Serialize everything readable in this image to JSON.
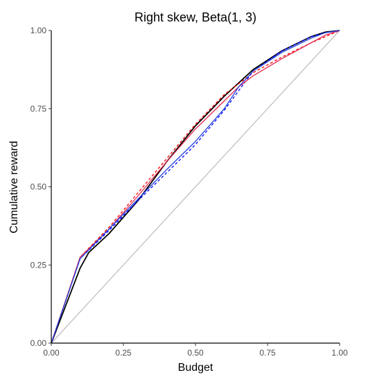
{
  "chart_data": {
    "type": "line",
    "title": "Right skew, Beta(1, 3)",
    "xlabel": "Budget",
    "ylabel": "Cumulative reward",
    "xlim": [
      0,
      1
    ],
    "ylim": [
      0,
      1
    ],
    "x_ticks": [
      "0.00",
      "0.25",
      "0.50",
      "0.75",
      "1.00"
    ],
    "y_ticks": [
      "0.00",
      "0.25",
      "0.50",
      "0.75",
      "1.00"
    ],
    "grid": false,
    "legend": "none",
    "series": [
      {
        "color": "#c0c0c0",
        "dash": "solid",
        "x": [
          0,
          1
        ],
        "y": [
          0,
          1
        ]
      },
      {
        "color": "#000000",
        "dash": "solid",
        "x": [
          0,
          0.05,
          0.1,
          0.13,
          0.2,
          0.3,
          0.4,
          0.5,
          0.6,
          0.7,
          0.8,
          0.9,
          0.95,
          1.0
        ],
        "y": [
          0,
          0.12,
          0.24,
          0.29,
          0.35,
          0.455,
          0.58,
          0.695,
          0.79,
          0.875,
          0.935,
          0.98,
          0.995,
          1.0
        ]
      },
      {
        "color": "#ff0000",
        "dash": "dashed",
        "x": [
          0,
          0.1,
          0.2,
          0.3,
          0.4,
          0.5,
          0.6,
          0.7,
          0.8,
          0.9,
          1.0
        ],
        "y": [
          0,
          0.275,
          0.37,
          0.48,
          0.59,
          0.7,
          0.795,
          0.865,
          0.915,
          0.96,
          1.0
        ]
      },
      {
        "color": "#0000ff",
        "dash": "dashed",
        "x": [
          0,
          0.1,
          0.2,
          0.3,
          0.4,
          0.5,
          0.6,
          0.7,
          0.8,
          0.9,
          0.95,
          1.0
        ],
        "y": [
          0,
          0.27,
          0.36,
          0.455,
          0.545,
          0.635,
          0.745,
          0.87,
          0.935,
          0.98,
          0.993,
          1.0
        ]
      },
      {
        "color": "#e0284f",
        "dash": "solid",
        "x": [
          0,
          0.1,
          0.2,
          0.3,
          0.4,
          0.5,
          0.6,
          0.65,
          0.7,
          0.8,
          0.9,
          0.95,
          1.0
        ],
        "y": [
          0,
          0.275,
          0.365,
          0.47,
          0.58,
          0.685,
          0.775,
          0.82,
          0.855,
          0.91,
          0.96,
          0.985,
          1.0
        ]
      },
      {
        "color": "#1f3fe0",
        "dash": "solid",
        "x": [
          0,
          0.1,
          0.2,
          0.3,
          0.4,
          0.5,
          0.6,
          0.65,
          0.7,
          0.75,
          0.8,
          0.9,
          0.95,
          1.0
        ],
        "y": [
          0,
          0.27,
          0.365,
          0.46,
          0.555,
          0.645,
          0.75,
          0.82,
          0.87,
          0.9,
          0.93,
          0.975,
          0.993,
          1.0
        ]
      }
    ]
  }
}
